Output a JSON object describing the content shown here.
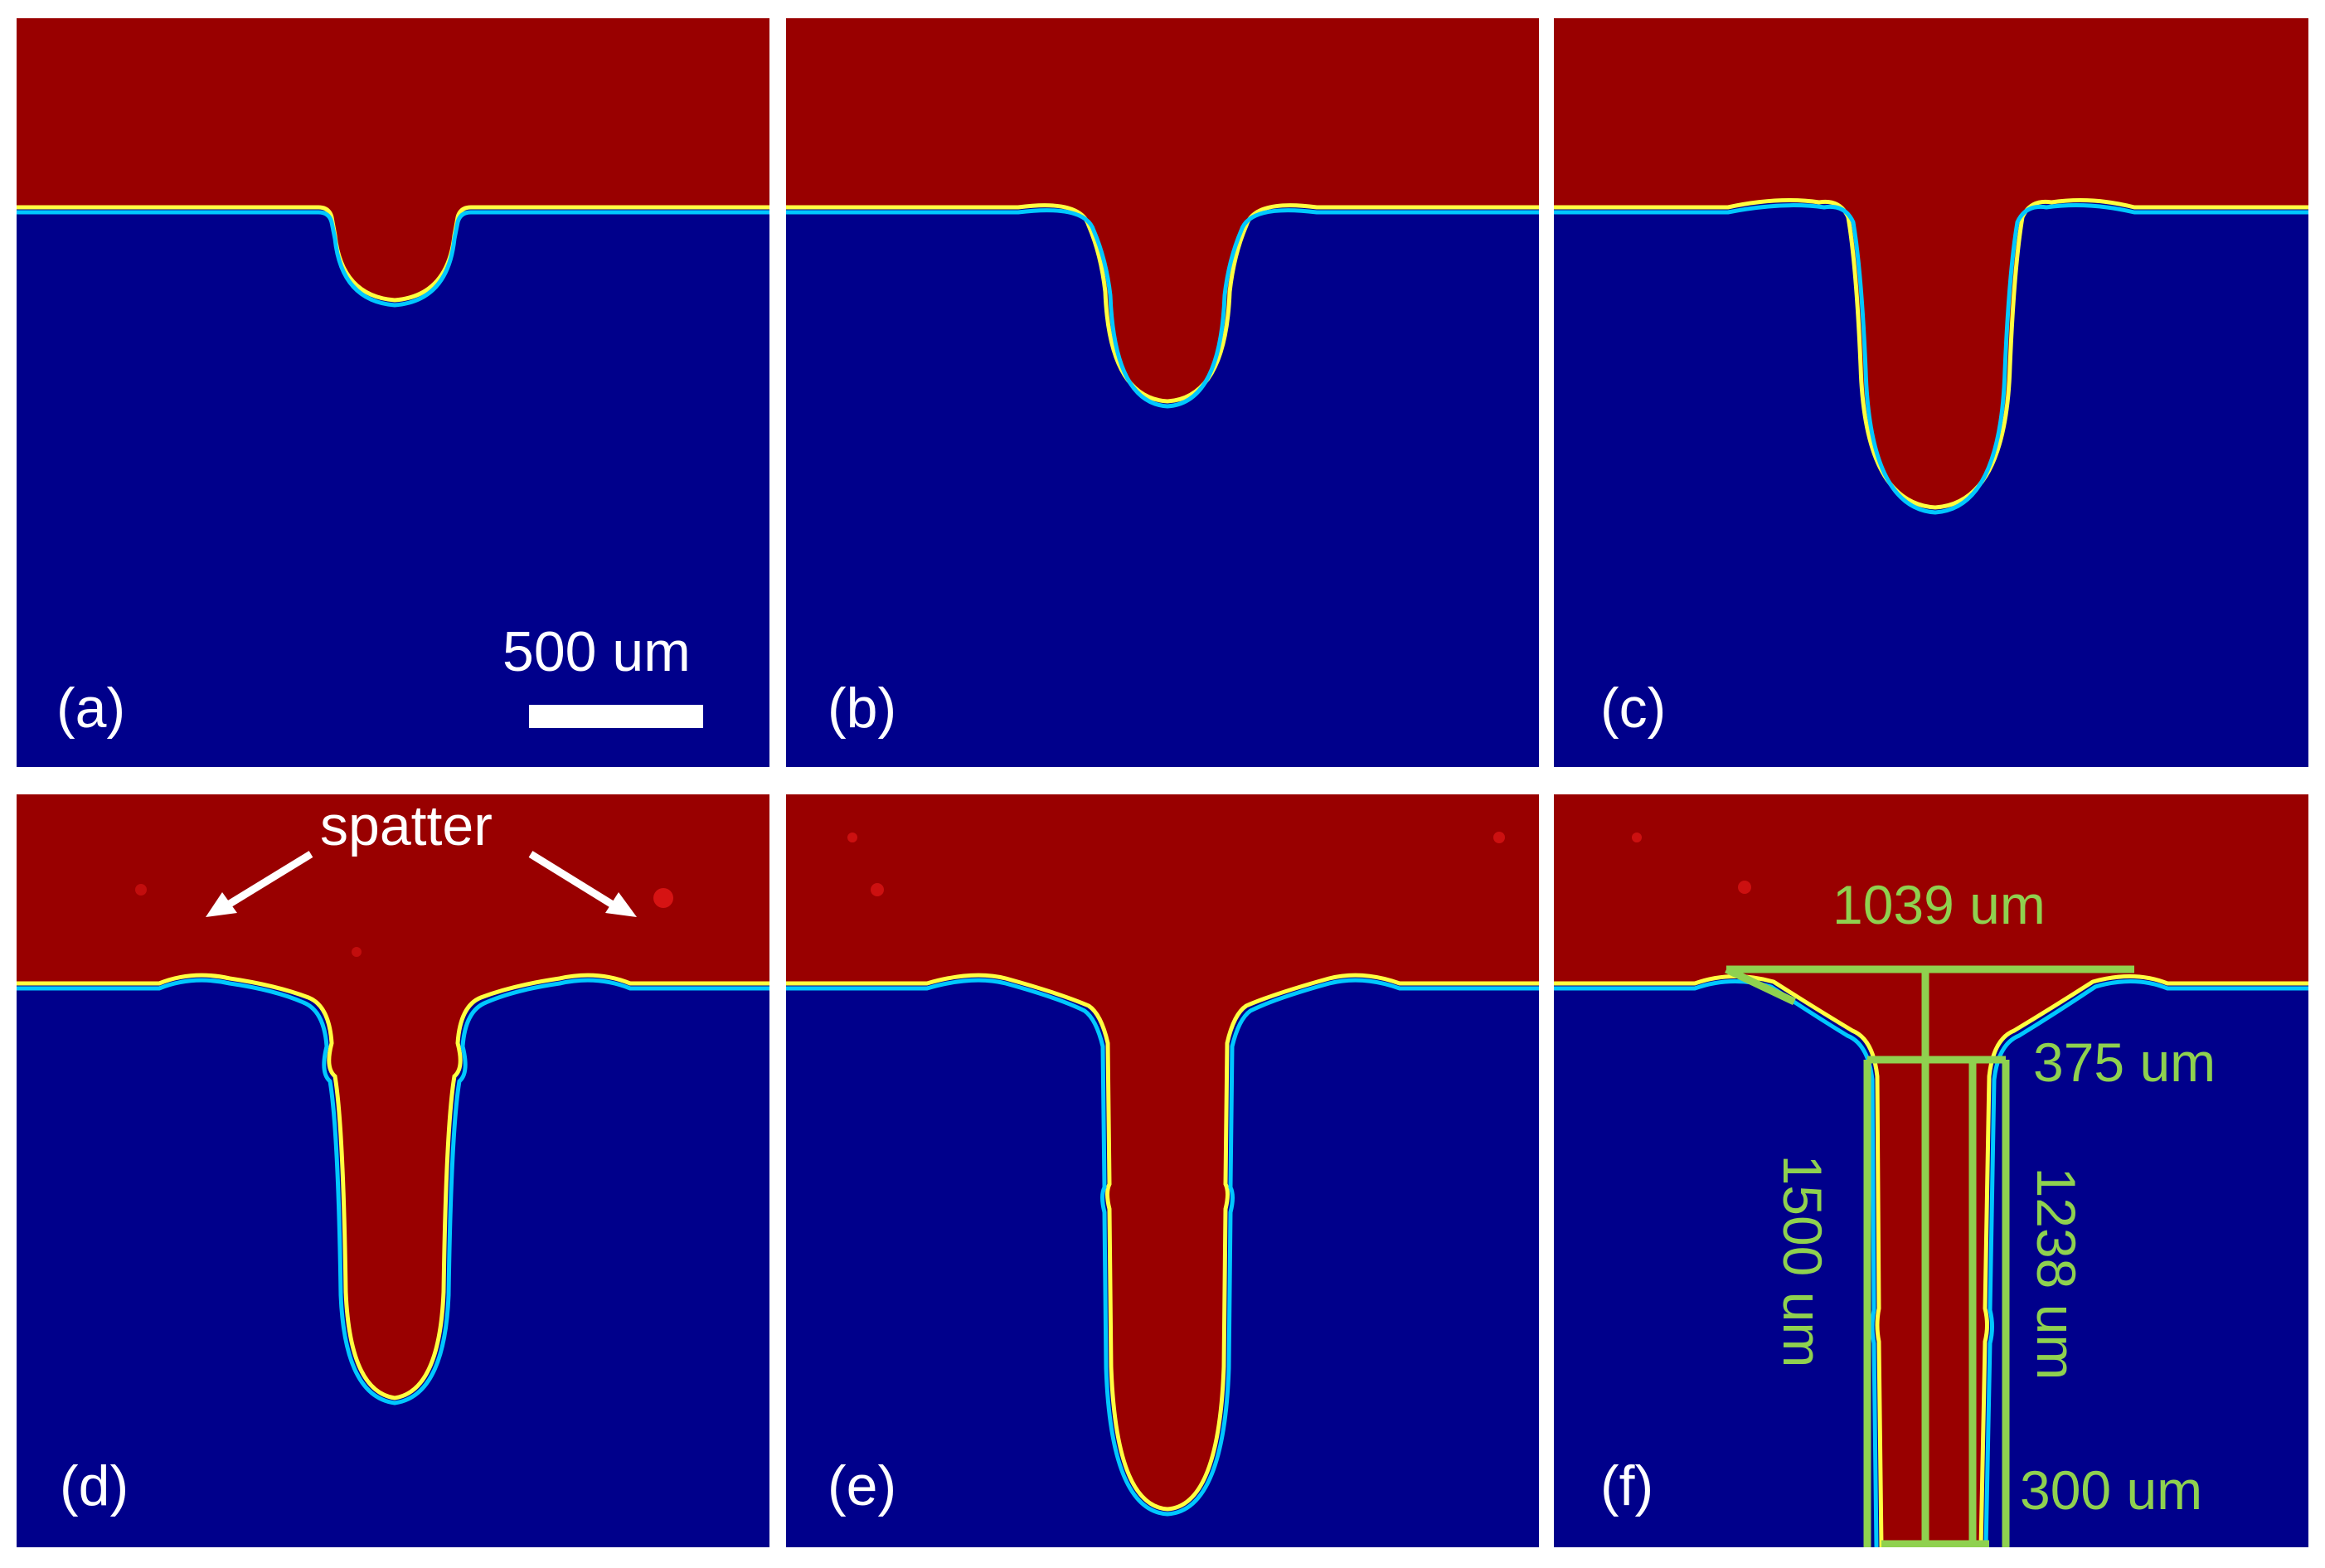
{
  "figure": {
    "colors": {
      "upper_region": "#990000",
      "lower_region": "#00008b",
      "annotation": "#8fd14f",
      "text": "#ffffff"
    },
    "panels": [
      {
        "id": "a",
        "label": "(a)"
      },
      {
        "id": "b",
        "label": "(b)"
      },
      {
        "id": "c",
        "label": "(c)"
      },
      {
        "id": "d",
        "label": "(d)"
      },
      {
        "id": "e",
        "label": "(e)"
      },
      {
        "id": "f",
        "label": "(f)"
      }
    ],
    "scale_bar": {
      "label": "500 um"
    },
    "spatter": {
      "label": "spatter"
    },
    "measurements": {
      "top_width": "1039 um",
      "neck_width": "375 um",
      "total_depth": "1500 um",
      "shaft_depth": "1238 um",
      "bottom_width": "300 um"
    }
  }
}
